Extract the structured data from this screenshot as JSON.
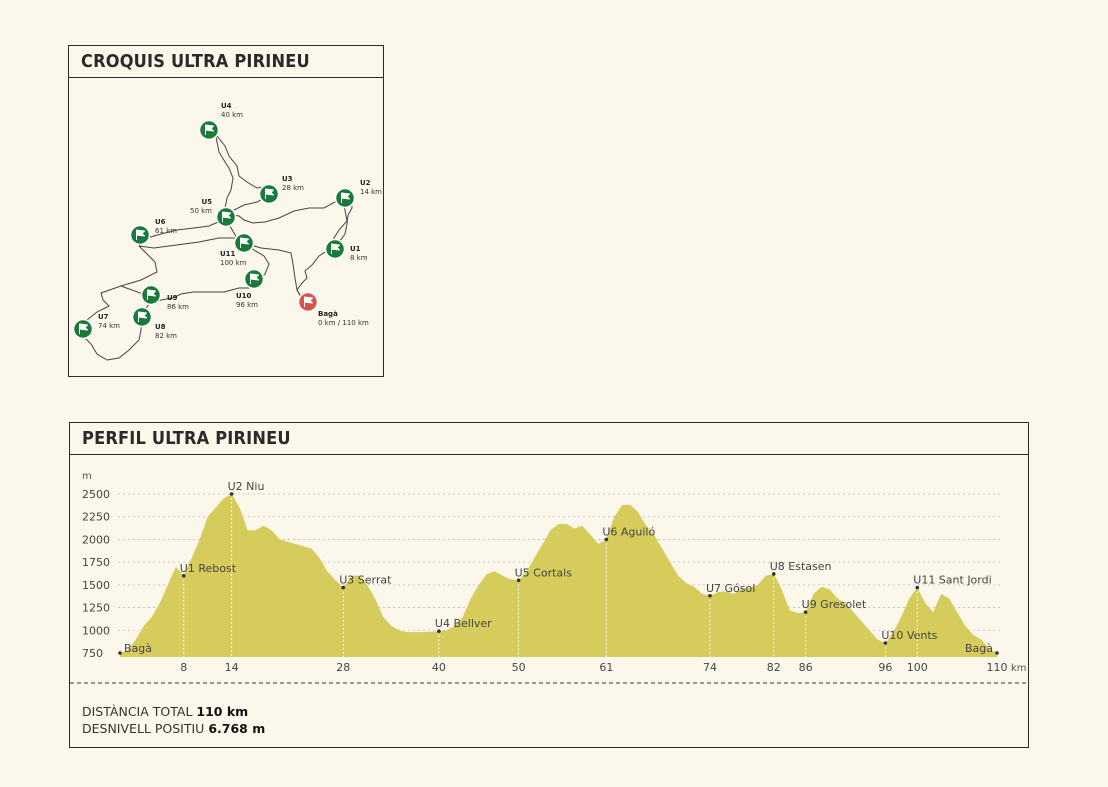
{
  "map": {
    "title": "CROQUIS ULTRA PIRINEU",
    "accent": "#1a7a3a",
    "start_color": "#d9534f",
    "points": [
      {
        "id": "U4",
        "name": "U4",
        "km": "40 km"
      },
      {
        "id": "U3",
        "name": "U3",
        "km": "28 km"
      },
      {
        "id": "U2",
        "name": "U2",
        "km": "14 km"
      },
      {
        "id": "U5",
        "name": "U5",
        "km": "50 km"
      },
      {
        "id": "U6",
        "name": "U6",
        "km": "61 km"
      },
      {
        "id": "U11",
        "name": "U11",
        "km": "100 km"
      },
      {
        "id": "U1",
        "name": "U1",
        "km": "8 km"
      },
      {
        "id": "U10",
        "name": "U10",
        "km": "96 km"
      },
      {
        "id": "U9",
        "name": "U9",
        "km": "86 km"
      },
      {
        "id": "Baga",
        "name": "Bagà",
        "km": "0 km / 110 km"
      },
      {
        "id": "U7",
        "name": "U7",
        "km": "74 km"
      },
      {
        "id": "U8",
        "name": "U8",
        "km": "82 km"
      }
    ]
  },
  "profile": {
    "title": "PERFIL ULTRA PIRINEU",
    "stats": {
      "distance_label": "DISTÀNCIA TOTAL",
      "distance_value": "110 km",
      "elevation_label": "DESNIVELL POSITIU",
      "elevation_value": "6.768 m"
    }
  },
  "chart_data": {
    "type": "area",
    "color": "#d6cc5c",
    "ylabel": "m",
    "xlabel": "km",
    "xlim": [
      0,
      110
    ],
    "ylim": [
      750,
      2500
    ],
    "y_ticks": [
      750,
      1000,
      1250,
      1500,
      1750,
      2000,
      2250,
      2500
    ],
    "x_ticks": [
      8,
      14,
      28,
      40,
      50,
      61,
      74,
      82,
      86,
      96,
      100,
      110
    ],
    "grid": true,
    "profile": [
      [
        0,
        750
      ],
      [
        1,
        780
      ],
      [
        2,
        900
      ],
      [
        3,
        1050
      ],
      [
        4,
        1150
      ],
      [
        5,
        1300
      ],
      [
        6,
        1500
      ],
      [
        7,
        1700
      ],
      [
        8,
        1600
      ],
      [
        9,
        1800
      ],
      [
        10,
        2000
      ],
      [
        11,
        2250
      ],
      [
        12,
        2350
      ],
      [
        13,
        2450
      ],
      [
        14,
        2500
      ],
      [
        15,
        2350
      ],
      [
        16,
        2100
      ],
      [
        17,
        2100
      ],
      [
        18,
        2150
      ],
      [
        19,
        2100
      ],
      [
        20,
        2000
      ],
      [
        22,
        1950
      ],
      [
        24,
        1900
      ],
      [
        25,
        1800
      ],
      [
        26,
        1650
      ],
      [
        27,
        1550
      ],
      [
        28,
        1470
      ],
      [
        29,
        1600
      ],
      [
        30,
        1600
      ],
      [
        31,
        1500
      ],
      [
        32,
        1350
      ],
      [
        33,
        1150
      ],
      [
        34,
        1050
      ],
      [
        35,
        1000
      ],
      [
        36,
        980
      ],
      [
        38,
        980
      ],
      [
        40,
        990
      ],
      [
        41,
        1000
      ],
      [
        42,
        1050
      ],
      [
        43,
        1150
      ],
      [
        44,
        1350
      ],
      [
        45,
        1500
      ],
      [
        46,
        1620
      ],
      [
        47,
        1650
      ],
      [
        48,
        1600
      ],
      [
        49,
        1560
      ],
      [
        50,
        1550
      ],
      [
        51,
        1650
      ],
      [
        52,
        1800
      ],
      [
        53,
        1950
      ],
      [
        54,
        2100
      ],
      [
        55,
        2170
      ],
      [
        56,
        2170
      ],
      [
        57,
        2120
      ],
      [
        58,
        2150
      ],
      [
        59,
        2050
      ],
      [
        60,
        1950
      ],
      [
        61,
        2000
      ],
      [
        62,
        2250
      ],
      [
        63,
        2380
      ],
      [
        64,
        2380
      ],
      [
        65,
        2300
      ],
      [
        66,
        2150
      ],
      [
        67,
        2050
      ],
      [
        68,
        1900
      ],
      [
        69,
        1750
      ],
      [
        70,
        1600
      ],
      [
        71,
        1520
      ],
      [
        72,
        1480
      ],
      [
        73,
        1400
      ],
      [
        74,
        1380
      ],
      [
        75,
        1420
      ],
      [
        76,
        1430
      ],
      [
        77,
        1400
      ],
      [
        78,
        1460
      ],
      [
        79,
        1470
      ],
      [
        80,
        1500
      ],
      [
        81,
        1600
      ],
      [
        82,
        1620
      ],
      [
        83,
        1450
      ],
      [
        84,
        1220
      ],
      [
        85,
        1190
      ],
      [
        86,
        1200
      ],
      [
        87,
        1400
      ],
      [
        88,
        1480
      ],
      [
        89,
        1450
      ],
      [
        90,
        1350
      ],
      [
        91,
        1300
      ],
      [
        92,
        1200
      ],
      [
        93,
        1100
      ],
      [
        94,
        1000
      ],
      [
        95,
        900
      ],
      [
        96,
        860
      ],
      [
        97,
        980
      ],
      [
        98,
        1150
      ],
      [
        99,
        1350
      ],
      [
        100,
        1470
      ],
      [
        101,
        1300
      ],
      [
        102,
        1200
      ],
      [
        103,
        1400
      ],
      [
        104,
        1350
      ],
      [
        105,
        1200
      ],
      [
        106,
        1050
      ],
      [
        107,
        950
      ],
      [
        108,
        900
      ],
      [
        109,
        800
      ],
      [
        110,
        750
      ]
    ],
    "waypoints": [
      {
        "km": 0,
        "alt": 750,
        "label": "Bagà"
      },
      {
        "km": 8,
        "alt": 1600,
        "label": "U1 Rebost"
      },
      {
        "km": 14,
        "alt": 2500,
        "label": "U2 Niu"
      },
      {
        "km": 28,
        "alt": 1470,
        "label": "U3 Serrat"
      },
      {
        "km": 40,
        "alt": 990,
        "label": "U4 Bellver"
      },
      {
        "km": 50,
        "alt": 1550,
        "label": "U5 Cortals"
      },
      {
        "km": 61,
        "alt": 2000,
        "label": "U6 Aguiló"
      },
      {
        "km": 74,
        "alt": 1380,
        "label": "U7 Gósol"
      },
      {
        "km": 82,
        "alt": 1620,
        "label": "U8 Estasen"
      },
      {
        "km": 86,
        "alt": 1200,
        "label": "U9 Gresolet"
      },
      {
        "km": 96,
        "alt": 860,
        "label": "U10 Vents"
      },
      {
        "km": 100,
        "alt": 1470,
        "label": "U11 Sant Jordi"
      },
      {
        "km": 110,
        "alt": 750,
        "label": "Bagà"
      }
    ]
  }
}
